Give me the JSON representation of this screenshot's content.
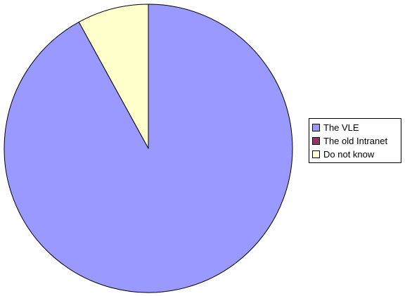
{
  "chart_data": {
    "type": "pie",
    "title": "",
    "labels": [
      "The VLE",
      "The old Intranet",
      "Do not know"
    ],
    "values": [
      92,
      0,
      8
    ],
    "colors": [
      "#9999ff",
      "#993366",
      "#ffffcc"
    ],
    "start_angle_deg": 0,
    "direction": "clockwise",
    "legend_position": "right"
  }
}
